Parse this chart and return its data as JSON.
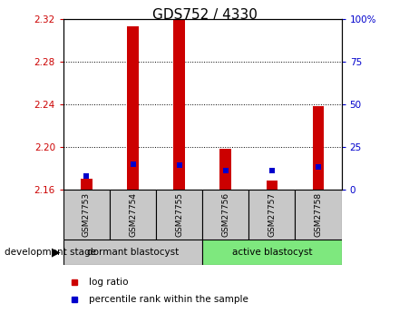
{
  "title": "GDS752 / 4330",
  "samples": [
    "GSM27753",
    "GSM27754",
    "GSM27755",
    "GSM27756",
    "GSM27757",
    "GSM27758"
  ],
  "base_value": 2.16,
  "log_ratio_values": [
    2.17,
    2.313,
    2.32,
    2.198,
    2.168,
    2.238
  ],
  "percentile_values": [
    8,
    15,
    14,
    11,
    11,
    13
  ],
  "ylim_left": [
    2.16,
    2.32
  ],
  "ylim_right": [
    0,
    100
  ],
  "yticks_left": [
    2.16,
    2.2,
    2.24,
    2.28,
    2.32
  ],
  "yticks_right": [
    0,
    25,
    50,
    75,
    100
  ],
  "ytick_labels_right": [
    "0",
    "25",
    "50",
    "75",
    "100%"
  ],
  "grid_values": [
    2.2,
    2.24,
    2.28
  ],
  "bar_color": "#cc0000",
  "percentile_color": "#0000cc",
  "dormant_label": "dormant blastocyst",
  "active_label": "active blastocyst",
  "stage_label": "development stage",
  "legend_log_ratio": "log ratio",
  "legend_percentile": "percentile rank within the sample",
  "tick_label_color_left": "#cc0000",
  "tick_label_color_right": "#0000cc",
  "bar_width": 0.25,
  "group_bg_dormant": "#c8c8c8",
  "group_bg_active": "#7ee87e",
  "title_fontsize": 11
}
